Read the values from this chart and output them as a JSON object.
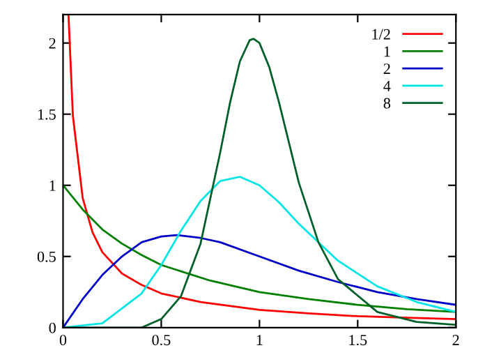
{
  "chart_data": {
    "type": "line",
    "xlim": [
      0,
      2
    ],
    "ylim": [
      0,
      2.2
    ],
    "xticks": [
      0,
      0.5,
      1,
      1.5,
      2
    ],
    "yticks": [
      0,
      0.5,
      1,
      1.5,
      2
    ],
    "legend": "top right",
    "grid": false,
    "line_style": "solid",
    "marker": "none",
    "series": [
      {
        "name": "1/2",
        "color": "#ff0000",
        "x": [
          0.028,
          0.05,
          0.1,
          0.15,
          0.2,
          0.3,
          0.4,
          0.5,
          0.7,
          1,
          1.25,
          1.5,
          1.75,
          2
        ],
        "values": [
          2.19,
          1.49,
          0.91,
          0.67,
          0.53,
          0.38,
          0.3,
          0.24,
          0.18,
          0.125,
          0.1,
          0.08,
          0.07,
          0.06
        ]
      },
      {
        "name": "1",
        "color": "#008000",
        "x": [
          0,
          0.1,
          0.2,
          0.3,
          0.4,
          0.5,
          0.75,
          1,
          1.25,
          1.5,
          1.75,
          2
        ],
        "values": [
          1,
          0.83,
          0.69,
          0.59,
          0.51,
          0.44,
          0.33,
          0.25,
          0.2,
          0.16,
          0.13,
          0.11
        ]
      },
      {
        "name": "2",
        "color": "#0000c8",
        "x": [
          0,
          0.1,
          0.2,
          0.3,
          0.4,
          0.5,
          0.58,
          0.7,
          0.8,
          1,
          1.2,
          1.4,
          1.6,
          1.8,
          2
        ],
        "values": [
          0,
          0.2,
          0.37,
          0.5,
          0.6,
          0.64,
          0.65,
          0.63,
          0.6,
          0.5,
          0.4,
          0.32,
          0.25,
          0.2,
          0.16
        ]
      },
      {
        "name": "4",
        "color": "#00e6e6",
        "x": [
          0,
          0.2,
          0.4,
          0.5,
          0.6,
          0.7,
          0.8,
          0.9,
          1,
          1.1,
          1.2,
          1.4,
          1.6,
          1.8,
          2
        ],
        "values": [
          0,
          0.03,
          0.24,
          0.44,
          0.68,
          0.89,
          1.03,
          1.06,
          1,
          0.88,
          0.73,
          0.47,
          0.29,
          0.18,
          0.11
        ]
      },
      {
        "name": "8",
        "color": "#00602a",
        "x": [
          0,
          0.4,
          0.5,
          0.6,
          0.7,
          0.8,
          0.85,
          0.9,
          0.95,
          0.97,
          1,
          1.05,
          1.1,
          1.2,
          1.3,
          1.4,
          1.6,
          1.8,
          2
        ],
        "values": [
          0,
          0,
          0.06,
          0.22,
          0.59,
          1.23,
          1.58,
          1.87,
          2.02,
          2.03,
          2,
          1.83,
          1.58,
          1.02,
          0.6,
          0.34,
          0.11,
          0.04,
          0.02
        ]
      }
    ]
  }
}
